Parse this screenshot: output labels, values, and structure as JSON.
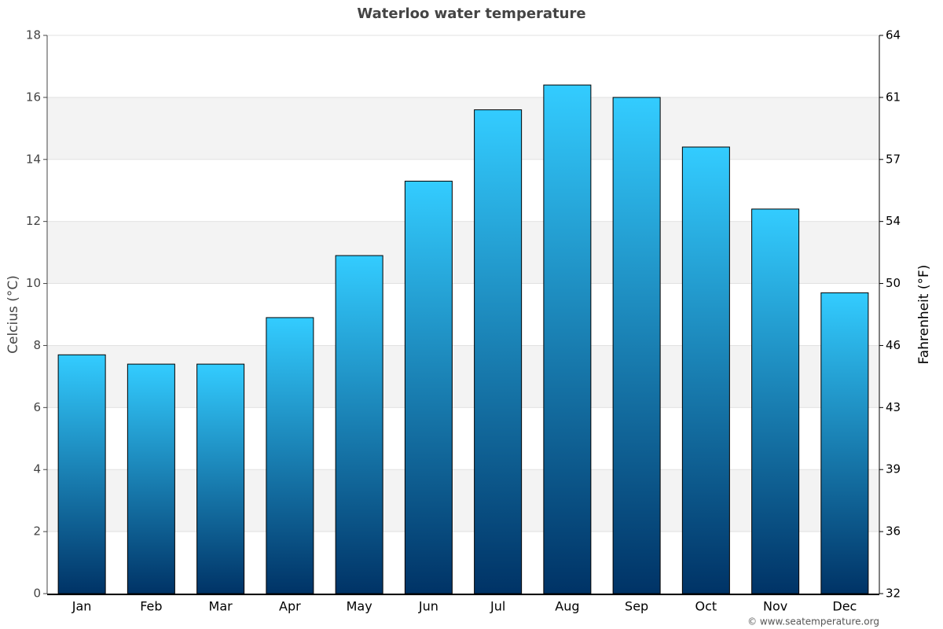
{
  "chart_data": {
    "type": "bar",
    "title": "Waterloo water temperature",
    "categories": [
      "Jan",
      "Feb",
      "Mar",
      "Apr",
      "May",
      "Jun",
      "Jul",
      "Aug",
      "Sep",
      "Oct",
      "Nov",
      "Dec"
    ],
    "values": [
      7.7,
      7.4,
      7.4,
      8.9,
      10.9,
      13.3,
      15.6,
      16.4,
      16.0,
      14.4,
      12.4,
      9.7
    ],
    "color": [
      "#33ccff",
      "#003366"
    ],
    "ylabel": "Celcius (°C)",
    "y2label": "Fahrenheit (°F)",
    "ylim": [
      0,
      18
    ],
    "yticks": [
      0,
      2,
      4,
      6,
      8,
      10,
      12,
      14,
      16,
      18
    ],
    "y2lim": [
      32,
      64.4
    ],
    "y2ticks": [
      32,
      {
        "value": 35.6,
        "label": "36"
      },
      {
        "value": 39.2,
        "label": "39"
      },
      {
        "value": 42.8,
        "label": "43"
      },
      {
        "value": 46.4,
        "label": "46"
      },
      50,
      {
        "value": 53.6,
        "label": "54"
      },
      {
        "value": 57.2,
        "label": "57"
      },
      {
        "value": 60.8,
        "label": "61"
      },
      {
        "value": 64.4,
        "label": "64"
      }
    ],
    "grid": true,
    "source": "© www.seatemperature.org"
  }
}
